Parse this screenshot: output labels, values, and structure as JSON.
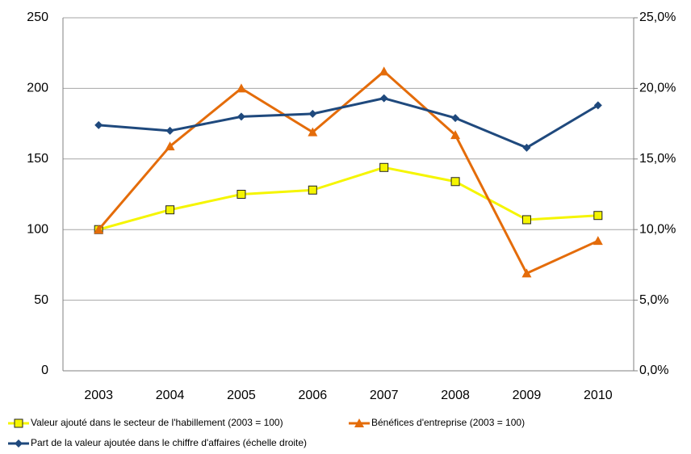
{
  "chart_data": {
    "type": "line",
    "categories": [
      "2003",
      "2004",
      "2005",
      "2006",
      "2007",
      "2008",
      "2009",
      "2010"
    ],
    "series": [
      {
        "name": "Valeur ajouté dans le secteur de l'habillement (2003 = 100)",
        "color": "#f5f500",
        "marker": "square",
        "values": [
          100,
          114,
          125,
          128,
          144,
          134,
          107,
          110
        ]
      },
      {
        "name": "Bénéfices d'entreprise (2003 = 100)",
        "color": "#e46c0a",
        "marker": "triangle",
        "values": [
          100,
          159,
          200,
          169,
          212,
          167,
          69,
          92
        ]
      },
      {
        "name": "Part de la valeur ajoutée dans le chiffre d'affaires (échelle droite)",
        "color": "#1f497d",
        "marker": "diamond",
        "axis": "y2",
        "values": [
          17.4,
          17.0,
          18.0,
          18.2,
          19.3,
          17.9,
          15.8,
          18.8
        ]
      }
    ],
    "ylim": [
      0,
      250
    ],
    "yticks": [
      0,
      50,
      100,
      150,
      200,
      250
    ],
    "y2lim": [
      0,
      25
    ],
    "y2ticks": [
      {
        "value": 0,
        "label": "0,0%"
      },
      {
        "value": 5,
        "label": "5,0%"
      },
      {
        "value": 10,
        "label": "10,0%"
      },
      {
        "value": 15,
        "label": "15,0%"
      },
      {
        "value": 20,
        "label": "20,0%"
      },
      {
        "value": 25,
        "label": "25,0%"
      }
    ],
    "grid": true,
    "legend": "bottom"
  }
}
